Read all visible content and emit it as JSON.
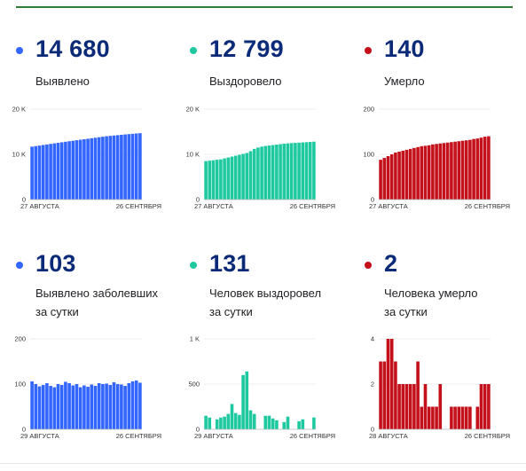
{
  "panels": [
    {
      "value": "14 680",
      "label_lines": [
        "Выявлено"
      ],
      "color": "#3366ff",
      "chart_data": {
        "type": "bar",
        "yticks": [
          "20 K",
          "10 K",
          "0"
        ],
        "ylim": [
          0,
          20000
        ],
        "x_start": "27 АВГУСТА",
        "x_end": "26 СЕНТЯБРЯ",
        "values": [
          11700,
          11820,
          11940,
          12060,
          12180,
          12300,
          12420,
          12540,
          12660,
          12780,
          12900,
          13010,
          13120,
          13230,
          13340,
          13450,
          13560,
          13670,
          13780,
          13890,
          14000,
          14080,
          14160,
          14240,
          14320,
          14400,
          14470,
          14540,
          14610,
          14680
        ]
      }
    },
    {
      "value": "12 799",
      "label_lines": [
        "Выздоровело"
      ],
      "color": "#1fc9a0",
      "chart_data": {
        "type": "bar",
        "yticks": [
          "20 K",
          "10 K",
          "0"
        ],
        "ylim": [
          0,
          20000
        ],
        "x_start": "27 АВГУСТА",
        "x_end": "26 СЕНТЯБРЯ",
        "values": [
          8500,
          8600,
          8700,
          8800,
          8900,
          9100,
          9300,
          9500,
          9700,
          9900,
          10100,
          10300,
          10700,
          11200,
          11500,
          11700,
          11850,
          11950,
          12050,
          12150,
          12250,
          12350,
          12420,
          12480,
          12540,
          12590,
          12640,
          12690,
          12740,
          12799
        ]
      }
    },
    {
      "value": "140",
      "label_lines": [
        "Умерло"
      ],
      "color": "#c4101a",
      "chart_data": {
        "type": "bar",
        "yticks": [
          "200",
          "100",
          "0"
        ],
        "ylim": [
          0,
          200
        ],
        "x_start": "27 АВГУСТА",
        "x_end": "26 СЕНТЯБРЯ",
        "values": [
          88,
          92,
          96,
          100,
          104,
          106,
          108,
          110,
          112,
          114,
          116,
          118,
          119,
          120,
          122,
          123,
          124,
          125,
          126,
          127,
          128,
          129,
          130,
          131,
          132,
          134,
          135,
          137,
          139,
          140
        ]
      }
    },
    {
      "value": "103",
      "label_lines": [
        "Выявлено заболевших",
        "за сутки"
      ],
      "color": "#3366ff",
      "chart_data": {
        "type": "bar",
        "yticks": [
          "200",
          "100",
          "0"
        ],
        "ylim": [
          0,
          200
        ],
        "x_start": "29 АВГУСТА",
        "x_end": "26 СЕНТЯБРЯ",
        "values": [
          106,
          100,
          95,
          98,
          102,
          96,
          93,
          100,
          98,
          105,
          102,
          97,
          100,
          93,
          97,
          94,
          99,
          96,
          102,
          100,
          101,
          98,
          104,
          100,
          99,
          96,
          102,
          106,
          108,
          103
        ]
      }
    },
    {
      "value": "131",
      "label_lines": [
        "Человек выздоровел",
        "за сутки"
      ],
      "color": "#1fc9a0",
      "chart_data": {
        "type": "bar",
        "yticks": [
          "1 K",
          "500",
          "0"
        ],
        "ylim": [
          0,
          1000
        ],
        "x_start": "29 АВГУСТА",
        "x_end": "26 СЕНТЯБРЯ",
        "values": [
          150,
          130,
          0,
          110,
          130,
          140,
          170,
          280,
          180,
          160,
          600,
          640,
          210,
          170,
          0,
          0,
          150,
          150,
          120,
          100,
          0,
          80,
          140,
          0,
          0,
          90,
          110,
          0,
          0,
          131
        ]
      }
    },
    {
      "value": "2",
      "label_lines": [
        "Человека умерло",
        "за сутки"
      ],
      "color": "#c4101a",
      "chart_data": {
        "type": "bar",
        "yticks": [
          "4",
          "2",
          "0"
        ],
        "ylim": [
          0,
          4
        ],
        "x_start": "28 АВГУСТА",
        "x_end": "26 СЕНТЯБРЯ",
        "values": [
          3,
          3,
          4,
          4,
          3,
          2,
          2,
          2,
          2,
          2,
          3,
          1,
          2,
          1,
          1,
          1,
          2,
          0,
          0,
          1,
          1,
          1,
          1,
          1,
          1,
          0,
          1,
          2,
          2,
          2
        ]
      }
    }
  ]
}
